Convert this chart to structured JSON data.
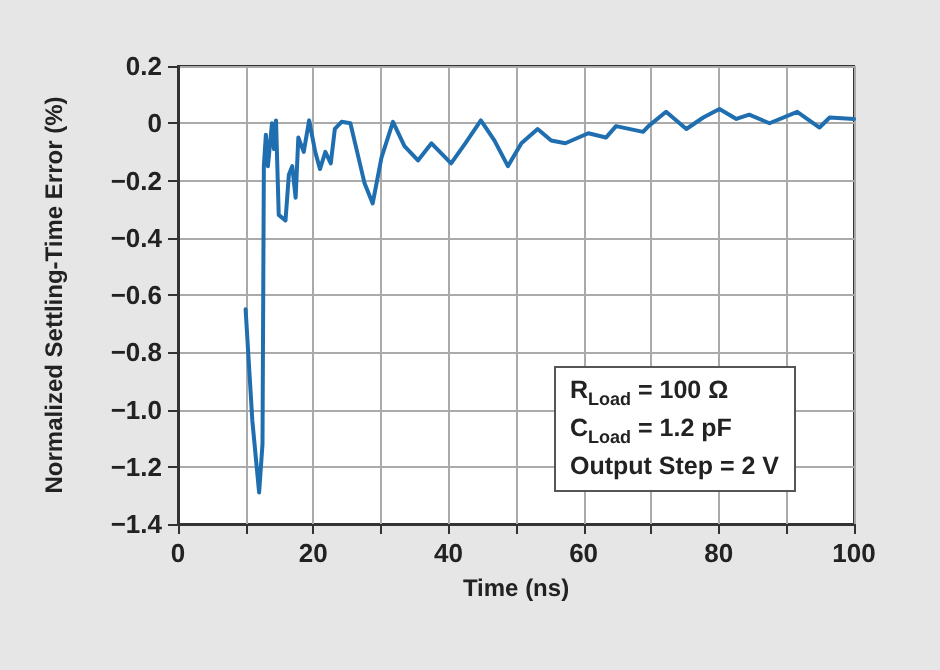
{
  "chart_data": {
    "type": "line",
    "xlabel": "Time (ns)",
    "ylabel": "Normalized Settling-Time Error (%)",
    "annotations": [
      "R$_{Load}$ = 100 Ω",
      "C$_{Load}$ = 1.2 pF",
      "Output Step = 2 V"
    ],
    "xlim": [
      0,
      100
    ],
    "xticks": [
      0,
      {
        "value": 10,
        "label": null
      },
      20,
      {
        "value": 30,
        "label": null
      },
      40,
      {
        "value": 50,
        "label": null
      },
      60,
      {
        "value": 70,
        "label": null
      },
      80,
      {
        "value": 90,
        "label": null
      },
      100
    ],
    "ylim": [
      -1.4,
      0.2
    ],
    "yticks": [
      {
        "value": -1.4,
        "label": "−1.4"
      },
      {
        "value": -1.2,
        "label": "−1.2"
      },
      {
        "value": -1.0,
        "label": "−1.0"
      },
      {
        "value": -0.8,
        "label": "−0.8"
      },
      {
        "value": -0.6,
        "label": "−0.6"
      },
      {
        "value": -0.4,
        "label": "−0.4"
      },
      {
        "value": -0.2,
        "label": "−0.2"
      },
      {
        "value": 0,
        "label": "0"
      },
      {
        "value": 0.2,
        "label": "0.2"
      }
    ],
    "grid": true,
    "marker": "none",
    "line_style": "solid",
    "series": [
      {
        "color": "#1f6fb0",
        "x": [
          10,
          11,
          12,
          12.5,
          12.7,
          13,
          13.3,
          13.9,
          14.2,
          14.5,
          14.9,
          15.9,
          16.4,
          16.9,
          17.4,
          17.8,
          18.6,
          19.4,
          20.3,
          21,
          21.8,
          22.6,
          23.2,
          24.2,
          25.5,
          26.5,
          27.6,
          28.8,
          30.1,
          31.8,
          33.5,
          35.5,
          37.5,
          40.4,
          42.5,
          44.8,
          46.8,
          48.8,
          50.8,
          53.2,
          55.2,
          57.3,
          60.7,
          63.3,
          64.8,
          68.8,
          69.6,
          72.2,
          75.2,
          77.7,
          80.1,
          82.6,
          84.5,
          87.5,
          91.6,
          94.9,
          96.4,
          100
        ],
        "values": [
          -0.65,
          -1.04,
          -1.29,
          -1.12,
          -0.15,
          -0.04,
          -0.15,
          0,
          -0.09,
          0.01,
          -0.32,
          -0.34,
          -0.18,
          -0.15,
          -0.26,
          -0.05,
          -0.1,
          0.01,
          -0.1,
          -0.16,
          -0.1,
          -0.14,
          -0.02,
          0.005,
          0,
          -0.1,
          -0.21,
          -0.28,
          -0.12,
          0.005,
          -0.08,
          -0.13,
          -0.07,
          -0.14,
          -0.07,
          0.01,
          -0.06,
          -0.15,
          -0.07,
          -0.02,
          -0.06,
          -0.07,
          -0.035,
          -0.05,
          -0.01,
          -0.03,
          -0.01,
          0.04,
          -0.02,
          0.02,
          0.05,
          0.015,
          0.03,
          0,
          0.04,
          -0.015,
          0.02,
          0.015
        ]
      }
    ]
  }
}
